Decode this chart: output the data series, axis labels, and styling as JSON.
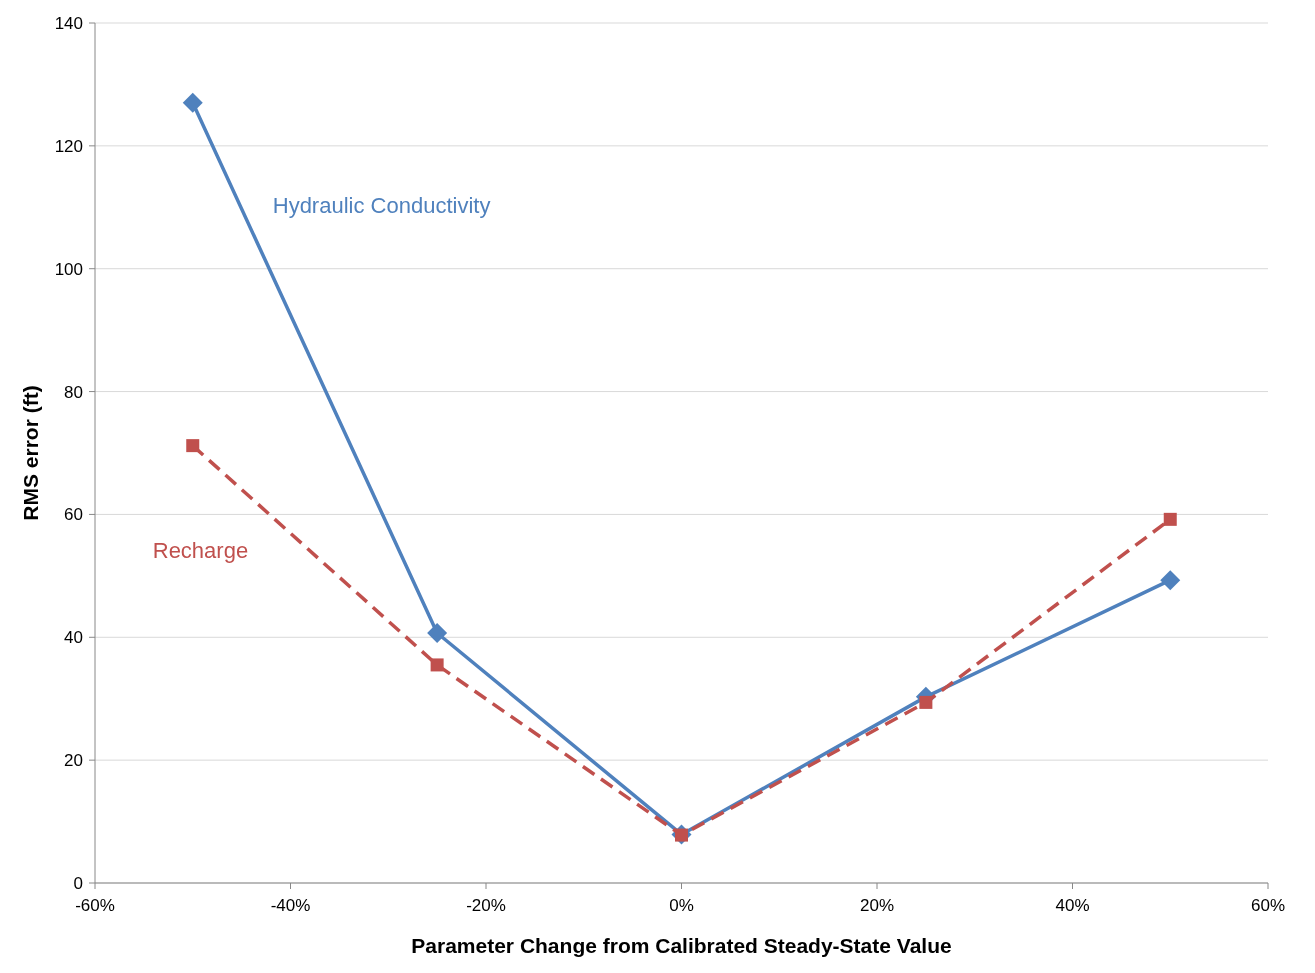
{
  "chart_data": {
    "type": "line",
    "xlabel": "Parameter Change from Calibrated Steady-State Value",
    "ylabel": "RMS error (ft)",
    "x": [
      -50,
      -25,
      0,
      25,
      50
    ],
    "series": [
      {
        "name": "Hydraulic Conductivity",
        "color": "#4f81bd",
        "values": [
          127,
          40.7,
          7.9,
          30.3,
          49.3
        ],
        "marker": "diamond",
        "line_style": "solid"
      },
      {
        "name": "Recharge",
        "color": "#c0504d",
        "values": [
          71.2,
          35.5,
          7.8,
          29.4,
          59.2
        ],
        "marker": "square",
        "line_style": "dashed"
      }
    ],
    "xlim": [
      -60,
      60
    ],
    "xticks": [
      {
        "value": -60,
        "label": "-60%"
      },
      {
        "value": -40,
        "label": "-40%"
      },
      {
        "value": -20,
        "label": "-20%"
      },
      {
        "value": 0,
        "label": "0%"
      },
      {
        "value": 20,
        "label": "20%"
      },
      {
        "value": 40,
        "label": "40%"
      },
      {
        "value": 60,
        "label": "60%"
      }
    ],
    "ylim": [
      0,
      140
    ],
    "yticks": [
      0,
      20,
      40,
      60,
      80,
      100,
      120,
      140
    ],
    "grid": "y"
  }
}
